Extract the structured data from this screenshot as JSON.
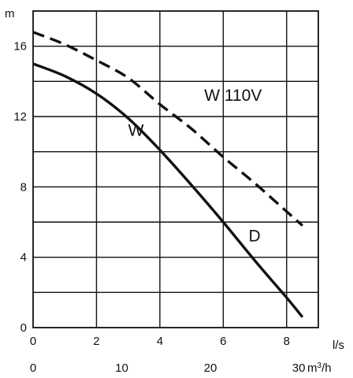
{
  "chart_data": {
    "type": "line",
    "y_unit": "m",
    "x_unit_primary": "l/s",
    "x_unit_secondary_prefix": "m",
    "x_unit_secondary_exp": "3",
    "x_unit_secondary_suffix": "/h",
    "xlim": [
      0,
      9
    ],
    "ylim": [
      0,
      18
    ],
    "x_ticks": [
      "0",
      "2",
      "4",
      "6",
      "8"
    ],
    "y_ticks": [
      "0",
      "4",
      "8",
      "12",
      "16"
    ],
    "x2_ticks": [
      "0",
      "10",
      "20",
      "30"
    ],
    "grid": true,
    "series": [
      {
        "name": "W 110V",
        "style": "dashed",
        "x": [
          0,
          1,
          2,
          3,
          4,
          5,
          6,
          7,
          8,
          8.5
        ],
        "y": [
          16.8,
          16.1,
          15.2,
          14.2,
          12.7,
          11.3,
          9.7,
          8.2,
          6.6,
          5.8
        ]
      },
      {
        "name": "W",
        "style": "solid",
        "x": [
          0,
          1,
          2,
          3,
          4,
          5,
          6,
          7,
          8,
          8.5
        ],
        "y": [
          15.0,
          14.3,
          13.3,
          11.9,
          10.1,
          8.1,
          6.0,
          3.8,
          1.7,
          0.6
        ]
      }
    ],
    "annotations": [
      {
        "text": "W 110V",
        "x": 5.4,
        "y": 12.9
      },
      {
        "text": "W",
        "x": 3.0,
        "y": 10.9
      },
      {
        "text": "D",
        "x": 6.8,
        "y": 4.9
      }
    ]
  }
}
